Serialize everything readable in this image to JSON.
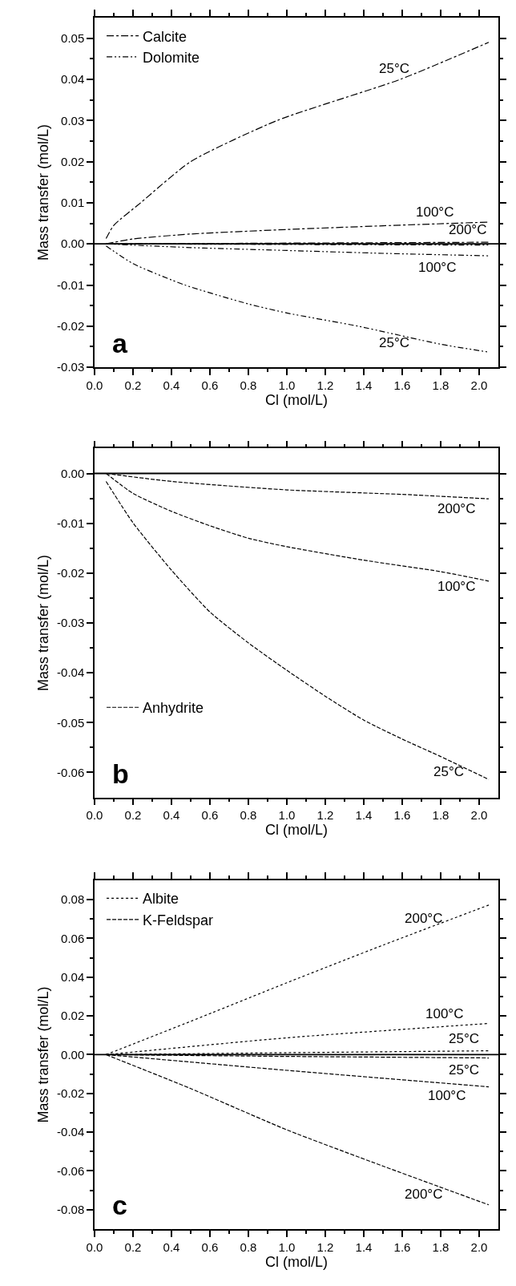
{
  "chart_data": [
    {
      "type": "line",
      "xlabel": "Cl (mol/L)",
      "ylabel": "Mass transfer (mol/L)",
      "legend": "top left",
      "xlim": [
        0,
        2.1
      ],
      "ylim": [
        -0.03,
        0.055
      ],
      "xticks": [
        {
          "value": 0,
          "label": "0.0"
        },
        0.2,
        0.4,
        0.6,
        0.8,
        {
          "value": 1,
          "label": "1.0"
        },
        1.2,
        1.4,
        1.6,
        1.8,
        {
          "value": 2,
          "label": "2.0"
        }
      ],
      "yticks": [
        {
          "value": -0.03,
          "label": "-0.03"
        },
        {
          "value": -0.02,
          "label": "-0.02"
        },
        {
          "value": -0.01,
          "label": "-0.01"
        },
        {
          "value": 0,
          "label": "0.00"
        },
        {
          "value": 0.01,
          "label": "0.01"
        },
        {
          "value": 0.02,
          "label": "0.02"
        },
        {
          "value": 0.03,
          "label": "0.03"
        },
        {
          "value": 0.04,
          "label": "0.04"
        },
        {
          "value": 0.05,
          "label": "0.05"
        }
      ],
      "ref_lines": [
        {
          "axis": "y",
          "value": 0
        }
      ],
      "series": [
        {
          "name": "Calcite",
          "color": "#000000",
          "line_style": "dashdot",
          "x": [
            0.06,
            0.1,
            0.24,
            0.5,
            0.95,
            1.59,
            2.05
          ],
          "values": [
            0.0013,
            0.0045,
            0.01,
            0.02,
            0.03,
            0.04,
            0.049
          ]
        },
        {
          "color": "#000000",
          "line_style": "dashdot",
          "x": [
            0.06,
            0.2,
            0.5,
            1.0,
            1.5,
            2.05
          ],
          "values": [
            0,
            0.0012,
            0.0024,
            0.0035,
            0.0044,
            0.0053
          ]
        },
        {
          "color": "#000000",
          "line_style": "dashdot",
          "x": [
            0.06,
            2.05
          ],
          "values": [
            0,
            0.0004
          ]
        },
        {
          "name": "Dolomite",
          "color": "#000000",
          "line_style": "dashdotdot",
          "x": [
            0.06,
            0.2,
            0.47,
            0.8,
            1.0,
            1.37,
            1.8,
            2.05
          ],
          "values": [
            -0.0005,
            -0.0048,
            -0.01,
            -0.0146,
            -0.0168,
            -0.02,
            -0.0244,
            -0.0263
          ]
        },
        {
          "color": "#000000",
          "line_style": "dashdotdot",
          "x": [
            0.06,
            0.5,
            1.0,
            1.5,
            2.05
          ],
          "values": [
            0,
            -0.0009,
            -0.0016,
            -0.0023,
            -0.0029
          ]
        },
        {
          "color": "#000000",
          "line_style": "dashdotdot",
          "x": [
            0.06,
            2.05
          ],
          "values": [
            0,
            -0.0003
          ]
        }
      ],
      "annotations": [
        "a",
        {
          "text": "25°C",
          "x": 1.56,
          "y": 0.0396
        },
        {
          "text": "100°C",
          "x": 1.77,
          "y": 0.0047
        },
        {
          "text": "200°C",
          "x": 1.94,
          "y": 0.0004
        },
        {
          "text": "100°C",
          "x": 1.78,
          "y": -0.0026
        },
        {
          "text": "25°C",
          "x": 1.56,
          "y": -0.0211
        }
      ]
    },
    {
      "type": "line",
      "xlabel": "Cl (mol/L)",
      "ylabel": "Mass transfer (mol/L)",
      "legend": "bottom left",
      "xlim": [
        0,
        2.1
      ],
      "ylim": [
        -0.065,
        0.005
      ],
      "xticks": [
        {
          "value": 0,
          "label": "0.0"
        },
        0.2,
        0.4,
        0.6,
        0.8,
        {
          "value": 1,
          "label": "1.0"
        },
        1.2,
        1.4,
        1.6,
        1.8,
        {
          "value": 2,
          "label": "2.0"
        }
      ],
      "yticks": [
        {
          "value": -0.06,
          "label": "-0.06"
        },
        {
          "value": -0.05,
          "label": "-0.05"
        },
        {
          "value": -0.04,
          "label": "-0.04"
        },
        {
          "value": -0.03,
          "label": "-0.03"
        },
        {
          "value": -0.02,
          "label": "-0.02"
        },
        {
          "value": -0.01,
          "label": "-0.01"
        },
        {
          "value": 0,
          "label": "0.00"
        }
      ],
      "ref_lines": [
        {
          "axis": "y",
          "value": 0
        }
      ],
      "series": [
        {
          "color": "#000000",
          "line_style": "dashed",
          "x": [
            0.06,
            0.4,
            1.0,
            1.6,
            2.05
          ],
          "values": [
            0,
            -0.0016,
            -0.0033,
            -0.0042,
            -0.0051
          ]
        },
        {
          "color": "#000000",
          "line_style": "dashed",
          "x": [
            0.06,
            0.2,
            0.4,
            0.6,
            0.8,
            1.0,
            1.4,
            1.8,
            2.05
          ],
          "values": [
            0,
            -0.004,
            -0.0076,
            -0.0105,
            -0.013,
            -0.0147,
            -0.0174,
            -0.0197,
            -0.0216
          ]
        },
        {
          "name": "Anhydrite",
          "color": "#000000",
          "line_style": "dashed",
          "x": [
            0.06,
            0.2,
            0.4,
            0.6,
            0.8,
            1.0,
            1.2,
            1.4,
            1.6,
            1.8,
            2.05
          ],
          "values": [
            -0.0016,
            -0.0099,
            -0.0194,
            -0.0278,
            -0.034,
            -0.0395,
            -0.0447,
            -0.0495,
            -0.0533,
            -0.0568,
            -0.0614
          ]
        }
      ],
      "annotations": [
        "b",
        {
          "text": "200°C",
          "x": 1.88,
          "y": -0.0046
        },
        {
          "text": "100°C",
          "x": 1.88,
          "y": -0.0202
        },
        {
          "text": "25°C",
          "x": 1.84,
          "y": -0.0574
        }
      ]
    },
    {
      "type": "line",
      "xlabel": "Cl (mol/L)",
      "ylabel": "Mass transfer (mol/L)",
      "legend": "top left",
      "xlim": [
        0,
        2.1
      ],
      "ylim": [
        -0.09,
        0.09
      ],
      "xticks": [
        {
          "value": 0,
          "label": "0.0"
        },
        0.2,
        0.4,
        0.6,
        0.8,
        {
          "value": 1,
          "label": "1.0"
        },
        1.2,
        1.4,
        1.6,
        1.8,
        {
          "value": 2,
          "label": "2.0"
        }
      ],
      "yticks": [
        {
          "value": -0.08,
          "label": "-0.08"
        },
        {
          "value": -0.06,
          "label": "-0.06"
        },
        {
          "value": -0.04,
          "label": "-0.04"
        },
        {
          "value": -0.02,
          "label": "-0.02"
        },
        {
          "value": 0,
          "label": "0.00"
        },
        {
          "value": 0.02,
          "label": "0.02"
        },
        {
          "value": 0.04,
          "label": "0.04"
        },
        {
          "value": 0.06,
          "label": "0.06"
        },
        {
          "value": 0.08,
          "label": "0.08"
        }
      ],
      "ref_lines": [
        {
          "axis": "y",
          "value": 0
        }
      ],
      "series": [
        {
          "name": "Albite",
          "color": "#000000",
          "line_style": "dotted",
          "x": [
            0.06,
            0.5,
            1.0,
            1.5,
            2.05
          ],
          "values": [
            0,
            0.0172,
            0.0371,
            0.0565,
            0.0772
          ]
        },
        {
          "color": "#000000",
          "line_style": "dotted",
          "x": [
            0.06,
            1.0,
            2.05
          ],
          "values": [
            0,
            0.0087,
            0.0161
          ]
        },
        {
          "color": "#000000",
          "line_style": "dotted",
          "x": [
            0.06,
            1.0,
            2.05
          ],
          "values": [
            0,
            0.001,
            0.002
          ]
        },
        {
          "name": "K-Feldspar",
          "color": "#000000",
          "line_style": "dashed",
          "x": [
            0.06,
            1.0,
            2.05
          ],
          "values": [
            0,
            -0.0009,
            -0.0017
          ]
        },
        {
          "color": "#000000",
          "line_style": "dashed",
          "x": [
            0.06,
            1.0,
            2.05
          ],
          "values": [
            0,
            -0.0081,
            -0.0166
          ]
        },
        {
          "color": "#000000",
          "line_style": "dashed",
          "x": [
            0.06,
            0.5,
            1.0,
            1.5,
            2.05
          ],
          "values": [
            0,
            -0.0175,
            -0.0388,
            -0.0575,
            -0.0775
          ]
        }
      ],
      "annotations": [
        "c",
        {
          "text": "200°C",
          "x": 1.71,
          "y": 0.064
        },
        {
          "text": "100°C",
          "x": 1.82,
          "y": 0.0147
        },
        {
          "text": "25°C",
          "x": 1.92,
          "y": 0.0019
        },
        {
          "text": "25°C",
          "x": 1.92,
          "y": -0.0016
        },
        {
          "text": "100°C",
          "x": 1.83,
          "y": -0.0149
        },
        {
          "text": "200°C",
          "x": 1.71,
          "y": -0.0657
        }
      ]
    }
  ]
}
